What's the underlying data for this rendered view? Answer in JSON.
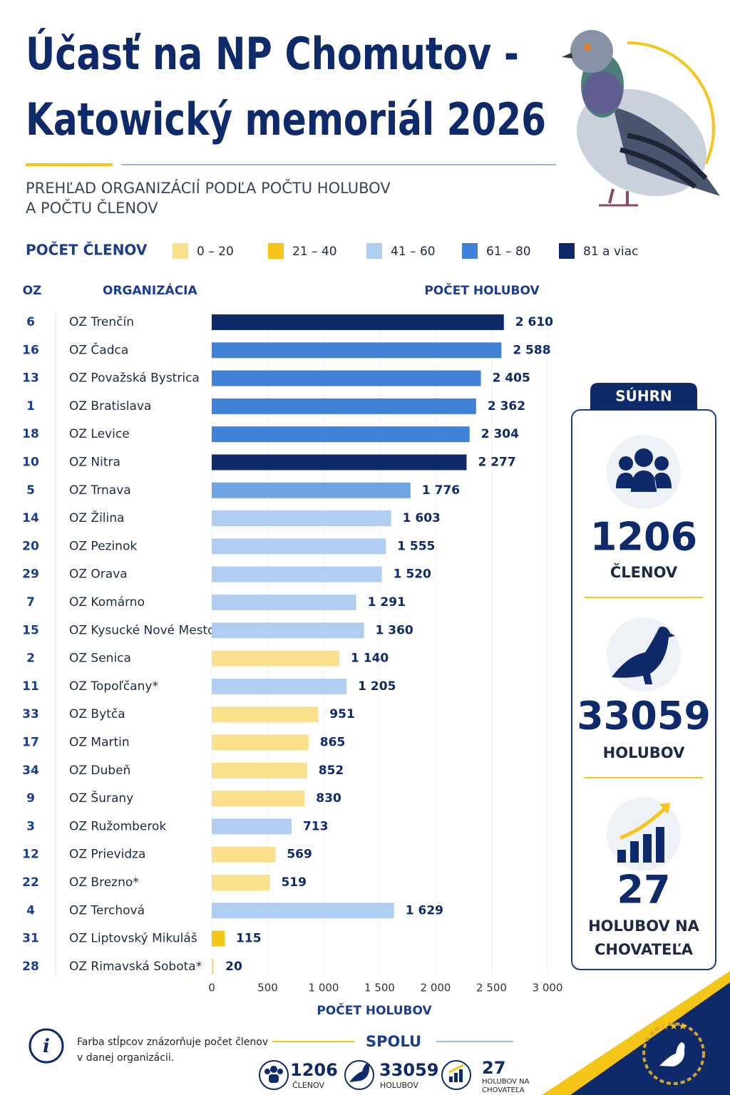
{
  "chart_data": {
    "type": "hbar",
    "title": [
      "Účasť na NP Chomutov -",
      "Katowický memoriál 2026"
    ],
    "subtitle": [
      "PREHĽAD ORGANIZÁCIÍ PODĽA POČTU HOLUBOV",
      "A POČTU ČLENOV"
    ],
    "legend_title": "POČET ČLENOV",
    "legend": [
      {
        "label": "0 – 20",
        "color": "#fadf8c"
      },
      {
        "label": "21 – 40",
        "color": "#f5c518"
      },
      {
        "label": "41 – 60",
        "color": "#b0cdf2"
      },
      {
        "label": "61 – 80",
        "color": "#3f82d8"
      },
      {
        "label": "81 a viac",
        "color": "#0f2a6b"
      }
    ],
    "columns": [
      "OZ",
      "ORGANIZÁCIA",
      "POČET HOLUBOV"
    ],
    "x_label": "POČET HOLUBOV",
    "oz": [
      6,
      16,
      13,
      1,
      18,
      10,
      5,
      14,
      20,
      29,
      7,
      15,
      2,
      11,
      33,
      17,
      34,
      9,
      3,
      12,
      22,
      4,
      31,
      28
    ],
    "categories": [
      "OZ Trenčín",
      "OZ Čadca",
      "OZ Považská Bystrica",
      "OZ Bratislava",
      "OZ Levice",
      "OZ Nitra",
      "OZ Trnava",
      "OZ Žilina",
      "OZ Pezinok",
      "OZ Orava",
      "OZ Komárno",
      "OZ Kysucké Nové Mesto",
      "OZ Senica",
      "OZ Topoľčany*",
      "OZ Bytča",
      "OZ Martin",
      "OZ Dubeň",
      "OZ Šurany",
      "OZ Ružomberok",
      "OZ Prievidza",
      "OZ Brezno*",
      "OZ Terchová",
      "OZ Liptovský Mikuláš",
      "OZ Rimavská Sobota*"
    ],
    "values": [
      2610,
      2588,
      2405,
      2362,
      2304,
      2277,
      1776,
      1603,
      1555,
      1520,
      1291,
      1360,
      1140,
      1205,
      951,
      865,
      852,
      830,
      713,
      569,
      519,
      1629,
      115,
      20
    ],
    "value_labels": [
      "2 610",
      "2 588",
      "2 405",
      "2 362",
      "2 304",
      "2 277",
      "1 776",
      "1 603",
      "1 555",
      "1 520",
      "1 291",
      "1 360",
      "1 140",
      "1 205",
      "951",
      "865",
      "852",
      "830",
      "713",
      "569",
      "519",
      "1 629",
      "115",
      "20"
    ],
    "colors": [
      "#0f2a6b",
      "#3f82d8",
      "#3f82d8",
      "#3f82d8",
      "#3f82d8",
      "#0f2a6b",
      "#6fa4e6",
      "#b0cdf2",
      "#b0cdf2",
      "#b0cdf2",
      "#b0cdf2",
      "#b0cdf2",
      "#fadf8c",
      "#b0cdf2",
      "#fadf8c",
      "#fadf8c",
      "#fadf8c",
      "#fadf8c",
      "#b0cdf2",
      "#fadf8c",
      "#fadf8c",
      "#b0cdf2",
      "#f5c518",
      "#fadf8c"
    ],
    "xlim": [
      0,
      3000
    ],
    "xticks": [
      0,
      500,
      {
        "value": 1000,
        "label": "1 000"
      },
      {
        "value": 1500,
        "label": "1 500"
      },
      {
        "value": 2000,
        "label": "2 000"
      },
      {
        "value": 2500,
        "label": "2 500"
      },
      {
        "value": 3000,
        "label": "3 000"
      }
    ],
    "grid": true
  },
  "summary": {
    "heading": "SÚHRN",
    "members": 1206,
    "members_label": "ČLENOV",
    "pigeons": 33059,
    "pigeons_label": "HOLUBOV",
    "ratio": 27,
    "ratio_label": [
      "HOLUBOV NA",
      "CHOVATEĽA"
    ]
  },
  "note": [
    "Farba stĺpcov znázorňuje počet členov",
    "v danej organizácii."
  ],
  "totals": {
    "heading": "SPOLU",
    "members": 1206,
    "members_label": "ČLENOV",
    "pigeons": 33059,
    "pigeons_label": "HOLUBOV",
    "ratio": 27,
    "ratio_label": [
      "HOLUBOV NA",
      "CHOVATEĽA"
    ]
  }
}
